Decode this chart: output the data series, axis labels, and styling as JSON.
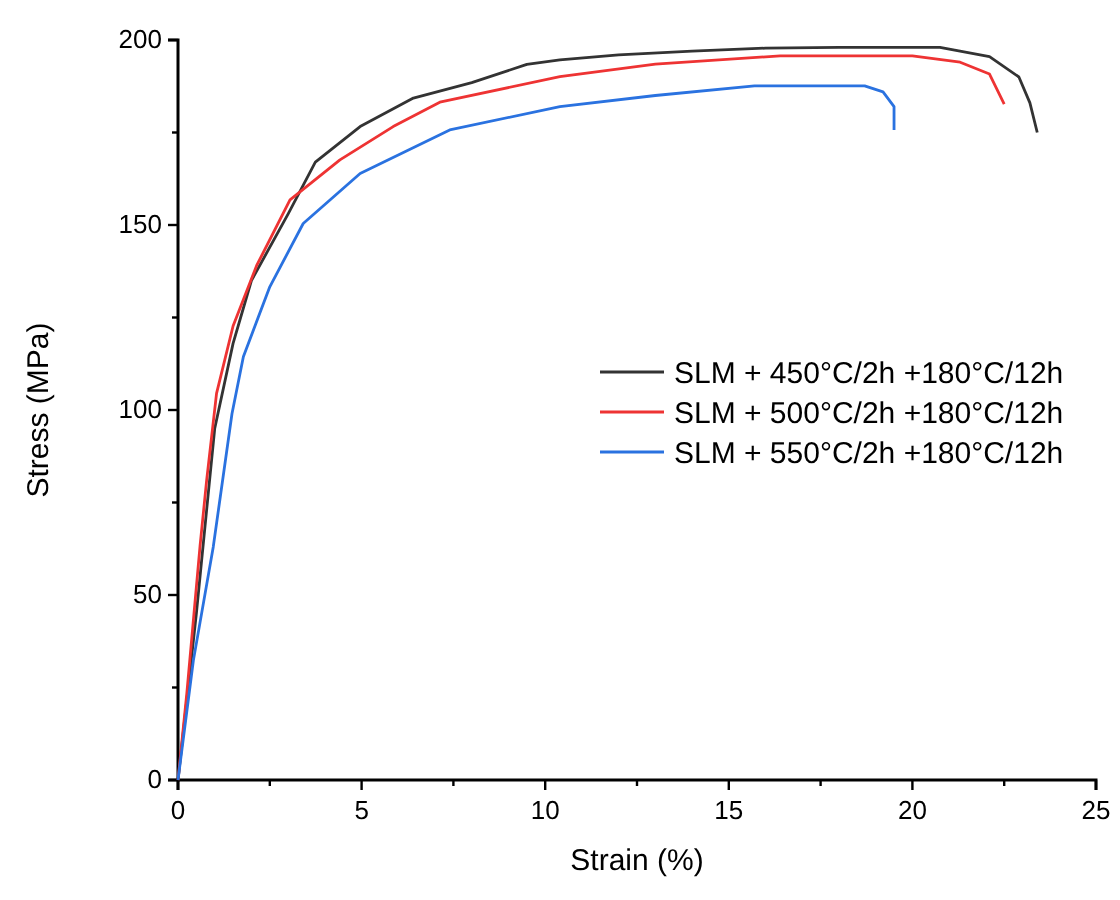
{
  "chart_data": {
    "type": "line",
    "xlabel": "Strain (%)",
    "ylabel": "Stress (MPa)",
    "xlim": [
      0,
      25
    ],
    "ylim": [
      0,
      200
    ],
    "xticks": [
      0,
      {
        "value": 2.5,
        "label": null
      },
      5,
      {
        "value": 7.5,
        "label": null
      },
      10,
      {
        "value": 12.5,
        "label": null
      },
      15,
      {
        "value": 17.5,
        "label": null
      },
      20,
      {
        "value": 22.5,
        "label": null
      },
      25
    ],
    "yticks": [
      0,
      {
        "value": 25,
        "label": null
      },
      50,
      {
        "value": 75,
        "label": null
      },
      100,
      {
        "value": 125,
        "label": null
      },
      150,
      {
        "value": 175,
        "label": null
      },
      200
    ],
    "grid": false,
    "legend": "right",
    "marker": "none",
    "line_style": "solid",
    "series": [
      {
        "name": "SLM + 450°C/2h +180°C/12h",
        "color": "#333333",
        "x": [
          0,
          0.5,
          1,
          1.5,
          2,
          3,
          3.74,
          4.96,
          6.41,
          8,
          9.5,
          10.4,
          12,
          14,
          16,
          18,
          20.75,
          22.1,
          22.9,
          23.2,
          23.4
        ],
        "values": [
          0,
          45,
          95,
          118,
          135,
          153,
          167,
          176.6,
          184.3,
          188.5,
          193.4,
          194.6,
          196,
          197,
          197.8,
          198,
          198,
          195.5,
          190,
          183,
          175
        ]
      },
      {
        "name": "SLM + 500°C/2h +180°C/12h",
        "color": "#ee3333",
        "x": [
          0,
          0.24,
          0.6,
          0.78,
          1.05,
          1.5,
          2.14,
          3.05,
          4.41,
          5.86,
          7.13,
          10.4,
          13,
          16.4,
          20,
          21.3,
          22.1,
          22.5
        ],
        "values": [
          0,
          23.4,
          63.2,
          81,
          104.5,
          122.7,
          139,
          156.8,
          167.6,
          176.6,
          183.2,
          190.1,
          193.5,
          195.7,
          195.7,
          194,
          190.8,
          182.7
        ]
      },
      {
        "name": "SLM + 550°C/2h +180°C/12h",
        "color": "#2a72e0",
        "x": [
          0,
          0.42,
          0.96,
          1.47,
          1.78,
          2.5,
          3.41,
          4.96,
          7.4,
          10.4,
          13,
          15.7,
          18.7,
          19.2,
          19.5,
          19.5
        ],
        "values": [
          0,
          32.4,
          63,
          99,
          114.4,
          133.3,
          150.4,
          163.9,
          175.7,
          182,
          185,
          187.6,
          187.6,
          186,
          182,
          175.7
        ]
      }
    ]
  }
}
